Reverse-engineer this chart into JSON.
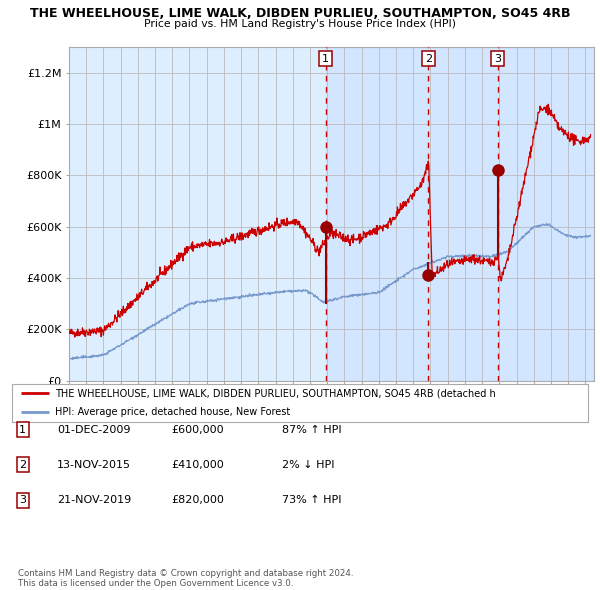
{
  "title": "THE WHEELHOUSE, LIME WALK, DIBDEN PURLIEU, SOUTHAMPTON, SO45 4RB",
  "subtitle": "Price paid vs. HM Land Registry's House Price Index (HPI)",
  "ylim": [
    0,
    1300000
  ],
  "xlim_start": 1995.0,
  "xlim_end": 2025.5,
  "background_color": "#ffffff",
  "plot_bg_color": "#ddeeff",
  "shade_color": "#cce0ff",
  "grid_color": "#bbbbbb",
  "red_line_color": "#cc0000",
  "blue_line_color": "#7799cc",
  "sale_marker_color": "#990000",
  "dashed_line_color": "#cc0000",
  "legend_label_red": "THE WHEELHOUSE, LIME WALK, DIBDEN PURLIEU, SOUTHAMPTON, SO45 4RB (detached h",
  "legend_label_blue": "HPI: Average price, detached house, New Forest",
  "sale_dates": [
    2009.917,
    2015.872,
    2019.894
  ],
  "sale_prices": [
    600000,
    410000,
    820000
  ],
  "sale_labels": [
    "1",
    "2",
    "3"
  ],
  "shade_start": 2009.917,
  "shade_end": 2025.5,
  "table_rows": [
    [
      "1",
      "01-DEC-2009",
      "£600,000",
      "87% ↑ HPI"
    ],
    [
      "2",
      "13-NOV-2015",
      "£410,000",
      "2% ↓ HPI"
    ],
    [
      "3",
      "21-NOV-2019",
      "£820,000",
      "73% ↑ HPI"
    ]
  ],
  "footnote": "Contains HM Land Registry data © Crown copyright and database right 2024.\nThis data is licensed under the Open Government Licence v3.0.",
  "ytick_labels": [
    "£0",
    "£200K",
    "£400K",
    "£600K",
    "£800K",
    "£1M",
    "£1.2M"
  ],
  "ytick_values": [
    0,
    200000,
    400000,
    600000,
    800000,
    1000000,
    1200000
  ]
}
